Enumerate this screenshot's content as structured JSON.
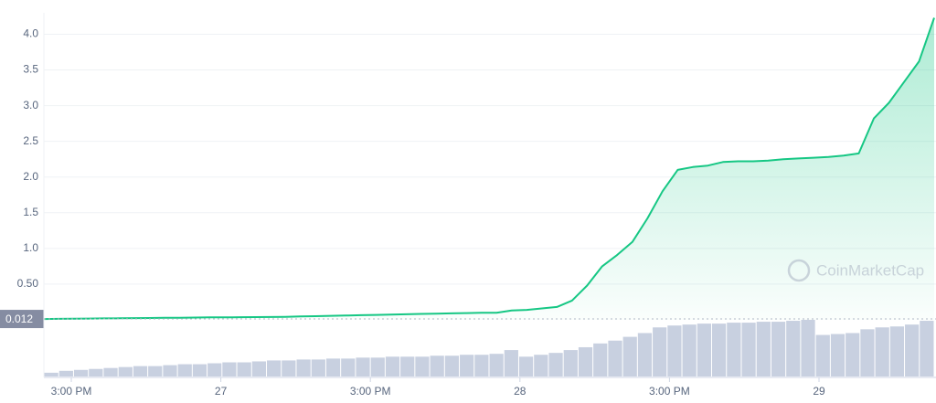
{
  "chart_data": {
    "type": "area",
    "color": "#16c784",
    "ylim": [
      0,
      4.3
    ],
    "yticks": [
      {
        "value": 0.5,
        "label": "0.50"
      },
      {
        "value": 1,
        "label": "1.0"
      },
      1.5,
      {
        "value": 2,
        "label": "2.0"
      },
      2.5,
      {
        "value": 3,
        "label": "3.0"
      },
      3.5,
      {
        "value": 4,
        "label": "4.0"
      }
    ],
    "grid": true,
    "xtick_labels": [
      "3:00 PM",
      "27",
      "3:00 PM",
      "28",
      "3:00 PM",
      "29"
    ],
    "price_marker": {
      "value": 0.012,
      "label": "0.012"
    },
    "values": [
      0.012,
      0.014,
      0.016,
      0.018,
      0.02,
      0.022,
      0.024,
      0.026,
      0.028,
      0.03,
      0.032,
      0.034,
      0.035,
      0.037,
      0.038,
      0.04,
      0.042,
      0.047,
      0.051,
      0.056,
      0.06,
      0.065,
      0.069,
      0.074,
      0.078,
      0.083,
      0.087,
      0.091,
      0.095,
      0.098,
      0.1,
      0.13,
      0.14,
      0.16,
      0.18,
      0.27,
      0.48,
      0.75,
      0.91,
      1.09,
      1.42,
      1.8,
      2.1,
      2.14,
      2.16,
      2.21,
      2.22,
      2.22,
      2.23,
      2.25,
      2.26,
      2.27,
      2.28,
      2.3,
      2.33,
      2.82,
      3.04,
      3.33,
      3.62,
      4.23
    ],
    "volume": [
      4,
      6,
      7,
      8,
      9,
      10,
      11,
      11,
      12,
      13,
      13,
      14,
      15,
      15,
      16,
      17,
      17,
      18,
      18,
      19,
      19,
      20,
      20,
      21,
      21,
      21,
      22,
      22,
      23,
      23,
      24,
      28,
      21,
      23,
      25,
      28,
      31,
      35,
      38,
      42,
      46,
      52,
      54,
      55,
      56,
      56,
      57,
      57,
      58,
      58,
      59,
      60,
      44,
      45,
      46,
      50,
      52,
      53,
      55,
      59
    ],
    "volume_color": "#c8d0e0",
    "watermark": "CoinMarketCap"
  }
}
